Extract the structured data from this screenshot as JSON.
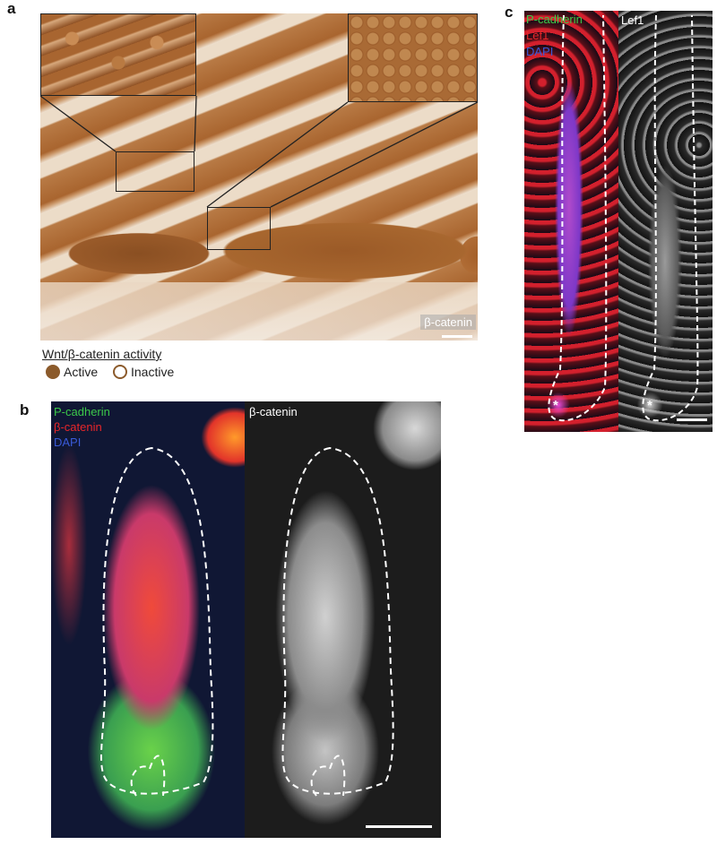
{
  "panels": {
    "a": {
      "letter": "a",
      "stain_label": "β-catenin",
      "legend": {
        "title": "Wnt/β-catenin activity",
        "items": [
          {
            "label": "Active",
            "fill": "#8B5A2B",
            "border": "#8B5A2B"
          },
          {
            "label": "Inactive",
            "fill": "#ffffff",
            "border": "#8B5A2B"
          }
        ]
      }
    },
    "b": {
      "letter": "b",
      "channels": [
        {
          "label": "P-cadherin",
          "color": "#3cc84a"
        },
        {
          "label": "β-catenin",
          "color": "#e8262a"
        },
        {
          "label": "DAPI",
          "color": "#3a5ad8"
        }
      ],
      "gray_label": "β-catenin"
    },
    "c": {
      "letter": "c",
      "channels": [
        {
          "label": "P-cadherin",
          "color": "#3cc84a"
        },
        {
          "label": "Lef1",
          "color": "#e8262a"
        },
        {
          "label": "DAPI",
          "color": "#3a5ad8"
        }
      ],
      "gray_label": "Lef1",
      "marker": "*"
    }
  }
}
